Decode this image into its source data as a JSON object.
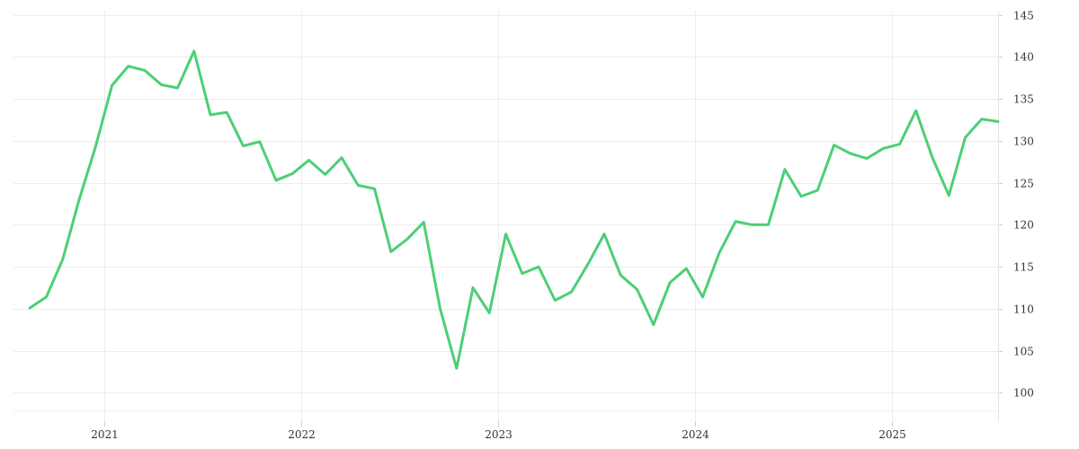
{
  "chart_data": {
    "type": "line",
    "title": "",
    "xlabel": "",
    "ylabel": "",
    "x_ticks": [
      {
        "label": "2021",
        "x": "2021-01"
      },
      {
        "label": "2022",
        "x": "2022-01"
      },
      {
        "label": "2023",
        "x": "2023-01"
      },
      {
        "label": "2024",
        "x": "2024-01"
      },
      {
        "label": "2025",
        "x": "2025-01"
      }
    ],
    "y_ticks": [
      100,
      105,
      110,
      115,
      120,
      125,
      130,
      135,
      140,
      145
    ],
    "xlim": [
      "2020-07-15",
      "2025-07-15"
    ],
    "ylim": [
      96.5,
      145.5
    ],
    "grid": true,
    "line_color": "#4ccf77",
    "series": [
      {
        "name": "",
        "x": [
          "2020-08",
          "2020-09",
          "2020-10",
          "2020-11",
          "2020-12",
          "2021-01",
          "2021-02",
          "2021-03",
          "2021-04",
          "2021-05",
          "2021-06",
          "2021-07",
          "2021-08",
          "2021-09",
          "2021-10",
          "2021-11",
          "2021-12",
          "2022-01",
          "2022-02",
          "2022-03",
          "2022-04",
          "2022-05",
          "2022-06",
          "2022-07",
          "2022-08",
          "2022-09",
          "2022-10",
          "2022-11",
          "2022-12",
          "2023-01",
          "2023-02",
          "2023-03",
          "2023-04",
          "2023-05",
          "2023-06",
          "2023-07",
          "2023-08",
          "2023-09",
          "2023-10",
          "2023-11",
          "2023-12",
          "2024-01",
          "2024-02",
          "2024-03",
          "2024-04",
          "2024-05",
          "2024-06",
          "2024-07",
          "2024-08",
          "2024-09",
          "2024-10",
          "2024-11",
          "2024-12",
          "2025-01",
          "2025-02",
          "2025-03",
          "2025-04",
          "2025-05",
          "2025-06",
          "2025-07"
        ],
        "y": [
          110.1,
          111.4,
          115.9,
          123.0,
          129.3,
          136.6,
          138.9,
          138.4,
          136.7,
          136.3,
          140.7,
          133.1,
          133.4,
          129.4,
          129.9,
          125.3,
          126.1,
          127.7,
          126.0,
          128.0,
          124.7,
          124.3,
          116.8,
          118.3,
          120.3,
          110.0,
          102.9,
          112.5,
          109.5,
          118.9,
          114.2,
          115.0,
          111.0,
          112.0,
          115.3,
          118.9,
          114.0,
          112.3,
          108.1,
          113.1,
          114.8,
          111.4,
          116.6,
          120.4,
          120.0,
          120.0,
          126.6,
          123.4,
          124.1,
          129.5,
          128.5,
          127.9,
          129.1,
          129.6,
          133.6,
          128.0,
          123.5,
          130.4,
          132.6,
          132.3
        ]
      }
    ]
  }
}
